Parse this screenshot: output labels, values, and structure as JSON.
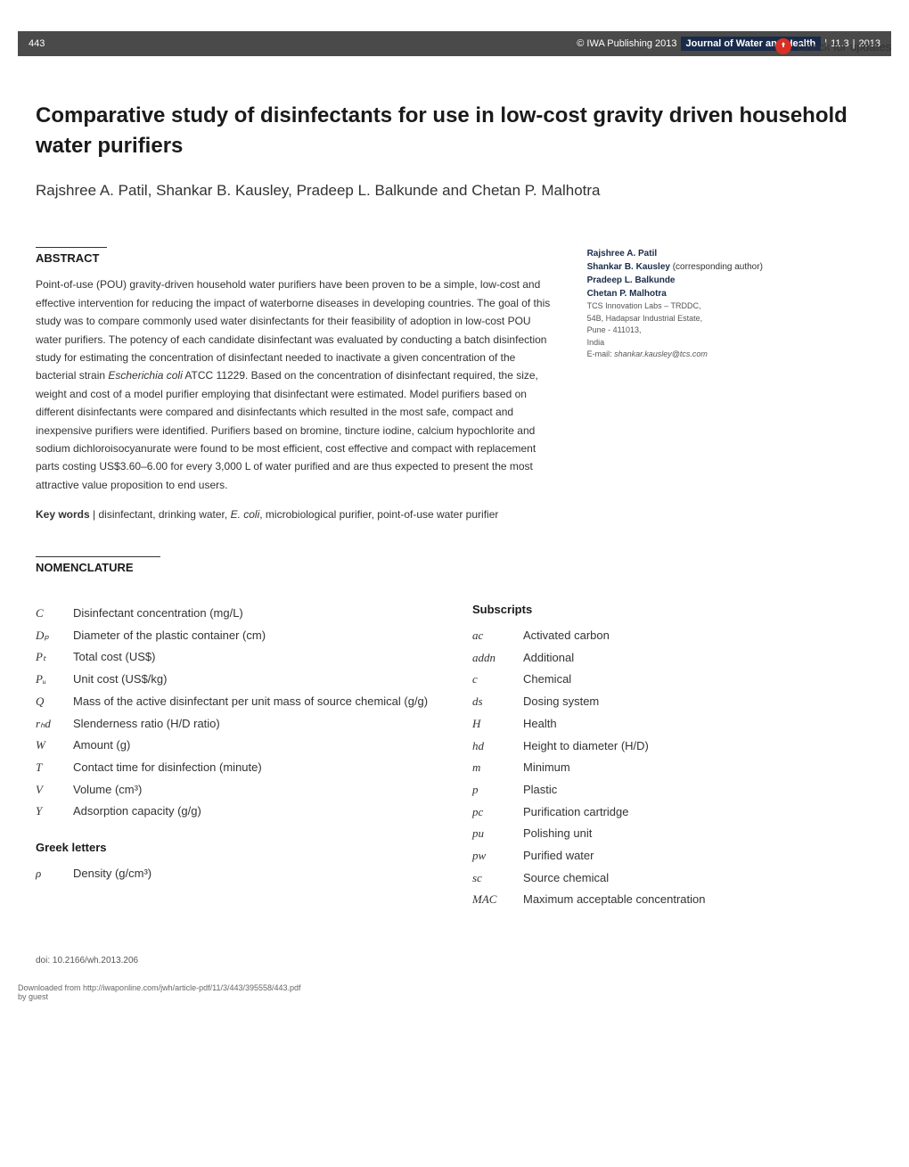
{
  "check_updates": {
    "label": "Check for updates"
  },
  "header": {
    "page_number": "443",
    "copyright": "© IWA Publishing 2013",
    "journal": "Journal of Water and Health",
    "issue": "11.3",
    "year": "2013"
  },
  "article": {
    "title": "Comparative study of disinfectants for use in low-cost gravity driven household water purifiers",
    "authors": "Rajshree A. Patil, Shankar B. Kausley, Pradeep L. Balkunde and Chetan P. Malhotra"
  },
  "abstract": {
    "heading": "ABSTRACT",
    "text_part1": "Point-of-use (POU) gravity-driven household water purifiers have been proven to be a simple, low-cost and effective intervention for reducing the impact of waterborne diseases in developing countries. The goal of this study was to compare commonly used water disinfectants for their feasibility of adoption in low-cost POU water purifiers. The potency of each candidate disinfectant was evaluated by conducting a batch disinfection study for estimating the concentration of disinfectant needed to inactivate a given concentration of the bacterial strain ",
    "text_italic1": "Escherichia coli",
    "text_part2": " ATCC 11229. Based on the concentration of disinfectant required, the size, weight and cost of a model purifier employing that disinfectant were estimated. Model purifiers based on different disinfectants were compared and disinfectants which resulted in the most safe, compact and inexpensive purifiers were identified. Purifiers based on bromine, tincture iodine, calcium hypochlorite and sodium dichloroisocyanurate were found to be most efficient, cost effective and compact with replacement parts costing US$3.60–6.00 for every 3,000 L of water purified and are thus expected to present the most attractive value proposition to end users."
  },
  "keywords": {
    "label": "Key words",
    "text_part1": " disinfectant, drinking water, ",
    "text_italic": "E. coli",
    "text_part2": ", microbiological purifier, point-of-use water purifier"
  },
  "author_info": {
    "author1": "Rajshree A. Patil",
    "author2": "Shankar B. Kausley",
    "corresponding": " (corresponding author)",
    "author3": "Pradeep L. Balkunde",
    "author4": "Chetan P. Malhotra",
    "affiliation_line1": "TCS Innovation Labs – TRDDC,",
    "affiliation_line2": "54B, Hadapsar Industrial Estate,",
    "affiliation_line3": "Pune - 411013,",
    "affiliation_line4": "India",
    "email_label": "E-mail: ",
    "email": "shankar.kausley@tcs.com"
  },
  "nomenclature": {
    "heading": "NOMENCLATURE",
    "main_items": [
      {
        "symbol": "C",
        "desc": "Disinfectant concentration (mg/L)"
      },
      {
        "symbol": "Dₚ",
        "desc": "Diameter of the plastic container (cm)"
      },
      {
        "symbol": "Pₜ",
        "desc": "Total cost (US$)"
      },
      {
        "symbol": "Pᵤ",
        "desc": "Unit cost (US$/kg)"
      },
      {
        "symbol": "Q",
        "desc": "Mass of the active disinfectant per unit mass of source chemical (g/g)"
      },
      {
        "symbol": "rₕd",
        "desc": "Slenderness ratio (H/D ratio)"
      },
      {
        "symbol": "W",
        "desc": "Amount (g)"
      },
      {
        "symbol": "T",
        "desc": "Contact time for disinfection (minute)"
      },
      {
        "symbol": "V",
        "desc": "Volume (cm³)"
      },
      {
        "symbol": "Y",
        "desc": "Adsorption capacity (g/g)"
      }
    ],
    "greek_heading": "Greek letters",
    "greek_items": [
      {
        "symbol": "ρ",
        "desc": "Density (g/cm³)"
      }
    ],
    "subscripts_heading": "Subscripts",
    "subscript_items": [
      {
        "symbol": "ac",
        "desc": "Activated carbon"
      },
      {
        "symbol": "addn",
        "desc": "Additional"
      },
      {
        "symbol": "c",
        "desc": "Chemical"
      },
      {
        "symbol": "ds",
        "desc": "Dosing system"
      },
      {
        "symbol": "H",
        "desc": "Health"
      },
      {
        "symbol": "hd",
        "desc": "Height to diameter (H/D)"
      },
      {
        "symbol": "m",
        "desc": "Minimum"
      },
      {
        "symbol": "p",
        "desc": "Plastic"
      },
      {
        "symbol": "pc",
        "desc": "Purification cartridge"
      },
      {
        "symbol": "pu",
        "desc": "Polishing unit"
      },
      {
        "symbol": "pw",
        "desc": "Purified water"
      },
      {
        "symbol": "sc",
        "desc": "Source chemical"
      },
      {
        "symbol": "MAC",
        "desc": "Maximum acceptable concentration"
      }
    ]
  },
  "doi": "doi: 10.2166/wh.2013.206",
  "footer": {
    "line1": "Downloaded from http://iwaponline.com/jwh/article-pdf/11/3/443/395558/443.pdf",
    "line2": "by guest"
  }
}
